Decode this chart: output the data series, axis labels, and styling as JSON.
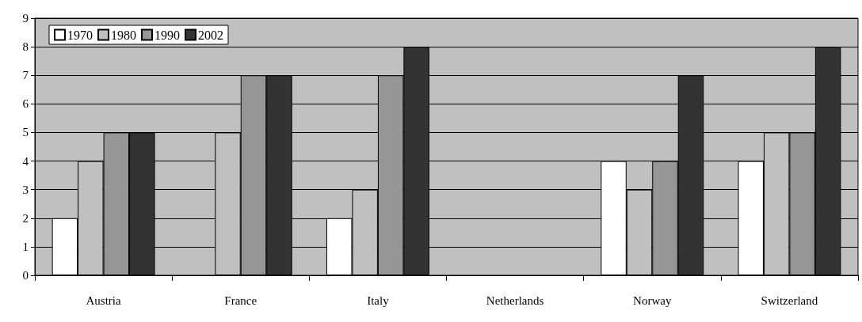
{
  "chart_data": {
    "type": "bar",
    "categories": [
      "Austria",
      "France",
      "Italy",
      "Netherlands",
      "Norway",
      "Switzerland"
    ],
    "series": [
      {
        "name": "1970",
        "color": "#ffffff",
        "values": [
          2,
          null,
          2,
          null,
          4,
          4
        ]
      },
      {
        "name": "1980",
        "color": "#c0c0c0",
        "values": [
          4,
          5,
          3,
          null,
          3,
          5
        ]
      },
      {
        "name": "1990",
        "color": "#969696",
        "values": [
          5,
          7,
          7,
          null,
          4,
          5
        ]
      },
      {
        "name": "2002",
        "color": "#333333",
        "values": [
          5,
          7,
          8,
          null,
          7,
          8
        ]
      }
    ],
    "ylim": [
      0,
      9
    ],
    "yticks": [
      0,
      1,
      2,
      3,
      4,
      5,
      6,
      7,
      8,
      9
    ],
    "grid": "y",
    "legend": "top left"
  }
}
